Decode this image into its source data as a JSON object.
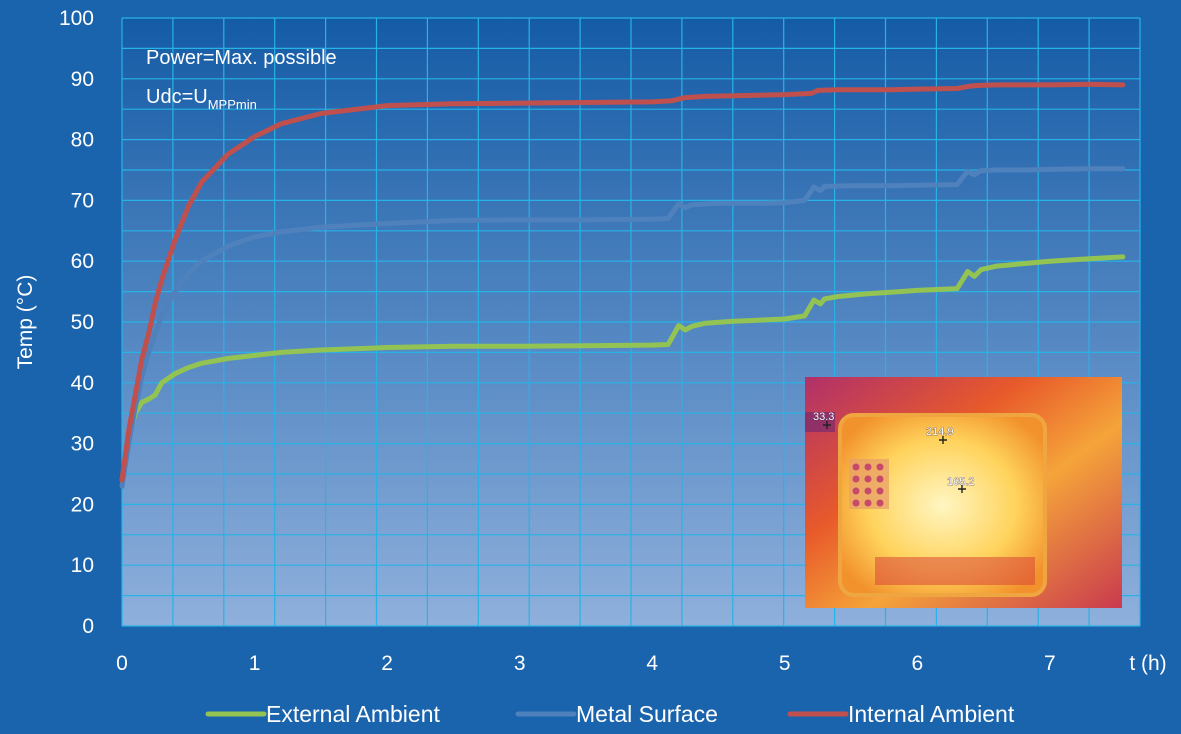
{
  "chart_data": {
    "type": "line",
    "xlabel": "t (h)",
    "ylabel": "Temp (°C)",
    "xlim": [
      0,
      7.68
    ],
    "ylim": [
      0,
      100
    ],
    "x_ticks": [
      0,
      1,
      2,
      3,
      4,
      5,
      6,
      7
    ],
    "y_ticks": [
      0,
      10,
      20,
      30,
      40,
      50,
      60,
      70,
      80,
      90,
      100
    ],
    "grid": true,
    "legend_position": "bottom",
    "colors": {
      "background_top": "#145ba6",
      "background_bottom": "#8fb0dc",
      "page": "#1a63ad",
      "grid": "#27b3e6",
      "text": "#ffffff"
    },
    "annotation": {
      "line1": "Power=Max. possible",
      "line2_main": "Udc=U",
      "line2_sub": "MPPmin"
    },
    "inset_image": {
      "kind": "thermal camera image",
      "labels": [
        "33.3",
        "214.9",
        "165.2"
      ]
    },
    "series": [
      {
        "name": "External Ambient",
        "color": "#92c353",
        "x": [
          0,
          0.05,
          0.1,
          0.15,
          0.2,
          0.25,
          0.3,
          0.4,
          0.5,
          0.6,
          0.8,
          1.0,
          1.2,
          1.5,
          2.0,
          2.5,
          3.0,
          3.5,
          4.0,
          4.12,
          4.2,
          4.25,
          4.3,
          4.4,
          4.6,
          5.0,
          5.15,
          5.22,
          5.27,
          5.3,
          5.4,
          5.6,
          6.0,
          6.3,
          6.38,
          6.43,
          6.48,
          6.6,
          6.8,
          7.0,
          7.3,
          7.55
        ],
        "y": [
          24,
          31,
          35,
          36.8,
          37.3,
          38,
          40,
          41.5,
          42.5,
          43.2,
          44,
          44.5,
          45,
          45.4,
          45.8,
          46,
          46,
          46.1,
          46.2,
          46.3,
          49.4,
          48.7,
          49.3,
          49.8,
          50.1,
          50.5,
          51,
          53.6,
          53,
          53.8,
          54.2,
          54.6,
          55.2,
          55.5,
          58.3,
          57.5,
          58.6,
          59.2,
          59.6,
          60,
          60.4,
          60.7
        ]
      },
      {
        "name": "Metal Surface",
        "color": "#4f81bd",
        "x": [
          0,
          0.05,
          0.1,
          0.15,
          0.2,
          0.25,
          0.3,
          0.4,
          0.5,
          0.6,
          0.8,
          1.0,
          1.2,
          1.5,
          2.0,
          2.5,
          3.0,
          3.5,
          4.0,
          4.12,
          4.2,
          4.25,
          4.3,
          4.5,
          4.8,
          5.0,
          5.15,
          5.22,
          5.27,
          5.3,
          5.5,
          5.8,
          6.0,
          6.3,
          6.38,
          6.43,
          6.48,
          6.6,
          6.8,
          7.0,
          7.3,
          7.55
        ],
        "y": [
          23,
          30,
          36,
          41,
          45,
          48,
          51,
          55,
          58,
          60,
          62.5,
          64,
          64.8,
          65.6,
          66.2,
          66.7,
          66.8,
          66.8,
          66.9,
          67,
          69.4,
          68.8,
          69.3,
          69.5,
          69.5,
          69.6,
          70,
          72.2,
          71.6,
          72.3,
          72.4,
          72.4,
          72.5,
          72.6,
          74.8,
          74.2,
          74.9,
          75,
          75,
          75.1,
          75.2,
          75.2
        ]
      },
      {
        "name": "Internal Ambient",
        "color": "#c0504d",
        "x": [
          0,
          0.05,
          0.1,
          0.15,
          0.2,
          0.25,
          0.3,
          0.4,
          0.5,
          0.6,
          0.8,
          1.0,
          1.2,
          1.5,
          2.0,
          2.5,
          3.0,
          3.5,
          4.0,
          4.15,
          4.25,
          4.4,
          4.8,
          5.0,
          5.2,
          5.25,
          5.4,
          5.8,
          6.0,
          6.3,
          6.4,
          6.45,
          6.6,
          7.0,
          7.3,
          7.55
        ],
        "y": [
          24,
          32,
          38,
          44,
          48,
          53,
          57,
          63.5,
          69,
          73,
          77.6,
          80.5,
          82.6,
          84.3,
          85.6,
          85.9,
          86,
          86.1,
          86.2,
          86.4,
          86.9,
          87.1,
          87.3,
          87.4,
          87.6,
          88.1,
          88.2,
          88.2,
          88.3,
          88.4,
          88.8,
          88.9,
          89,
          89,
          89.1,
          89
        ]
      }
    ]
  }
}
